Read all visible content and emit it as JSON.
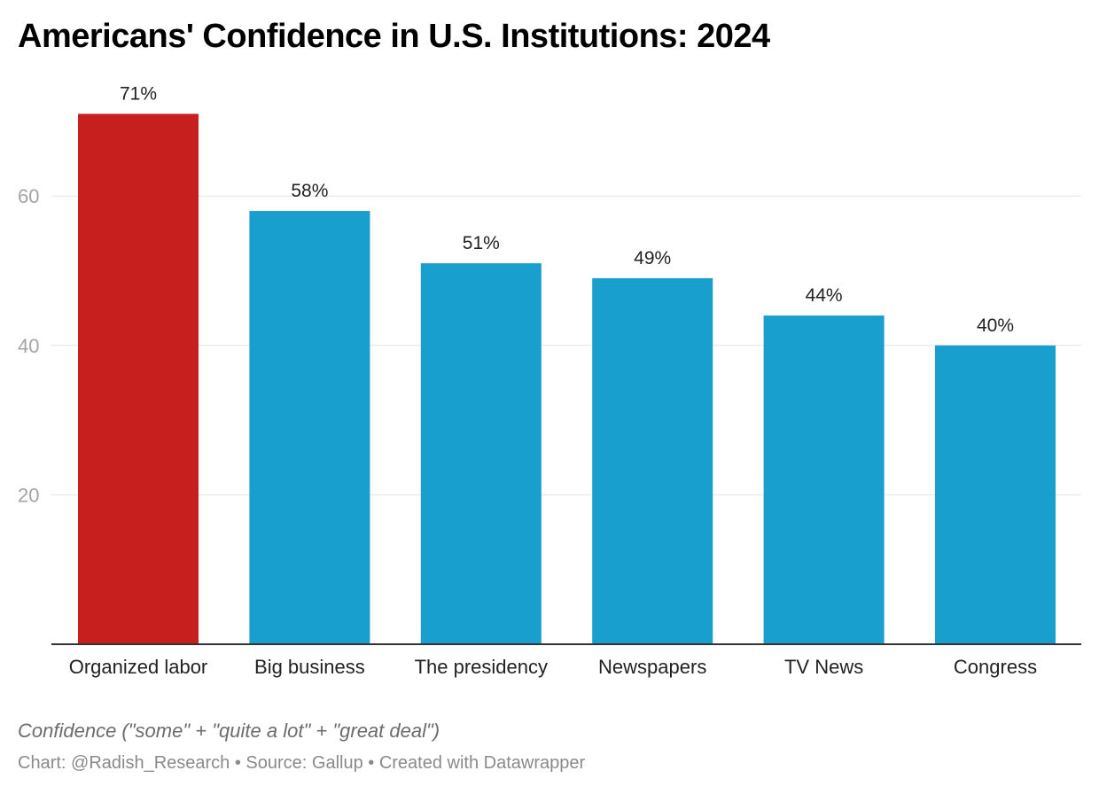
{
  "chart_data": {
    "type": "bar",
    "title": "Americans' Confidence in U.S. Institutions: 2024",
    "categories": [
      "Organized labor",
      "Big business",
      "The presidency",
      "Newspapers",
      "TV News",
      "Congress"
    ],
    "values": [
      71,
      58,
      51,
      49,
      44,
      40
    ],
    "value_labels": [
      "71%",
      "58%",
      "51%",
      "49%",
      "44%",
      "40%"
    ],
    "highlight_index": 0,
    "colors": {
      "highlight": "#c71e1e",
      "default": "#199fcd",
      "grid": "#e3e3e3",
      "baseline": "#333333"
    },
    "yticks": [
      20,
      40,
      60
    ],
    "ylim": [
      0,
      72
    ],
    "grid": true,
    "xlabel": "",
    "ylabel": ""
  },
  "notes": {
    "caption": "Confidence (\"some\" + \"quite a lot\" + \"great deal\")",
    "credit": "Chart: @Radish_Research • Source: Gallup • Created with Datawrapper"
  }
}
